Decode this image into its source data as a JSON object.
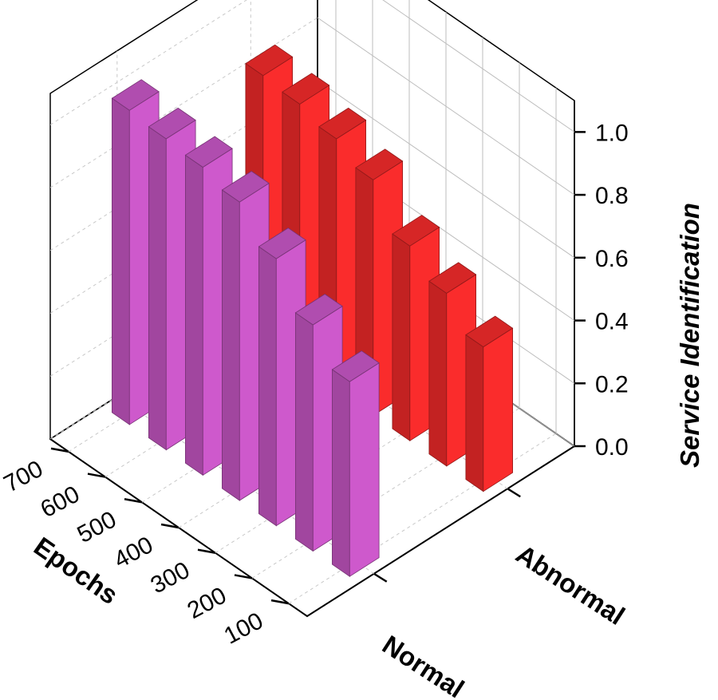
{
  "chart_data": {
    "type": "bar",
    "title": "",
    "xlabel": "Epochs",
    "ylabel": "",
    "zlabel": "Service Identification",
    "categories": [
      "100",
      "200",
      "300",
      "400",
      "500",
      "600",
      "700"
    ],
    "series_labels": [
      "Normal",
      "Abnormal"
    ],
    "series": [
      {
        "name": "Normal",
        "color": "#c455c2",
        "values": [
          0.62,
          0.72,
          0.85,
          0.95,
          0.98,
          0.99,
          1.0
        ]
      },
      {
        "name": "Abnormal",
        "color": "#ee2a2a",
        "values": [
          0.46,
          0.55,
          0.62,
          0.75,
          0.8,
          0.83,
          0.84
        ]
      }
    ],
    "z_ticks": [
      "0.0",
      "0.2",
      "0.4",
      "0.6",
      "0.8",
      "1.0"
    ],
    "zlim": [
      0,
      1.1
    ],
    "grid": true
  }
}
